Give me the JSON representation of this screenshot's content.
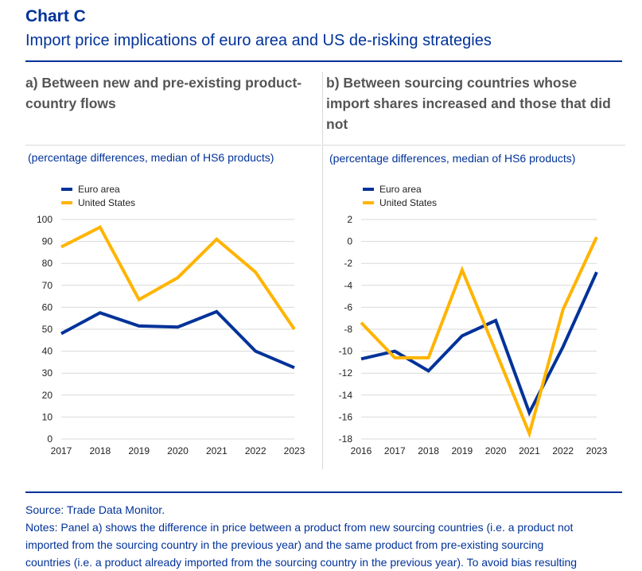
{
  "header": {
    "title": "Chart C",
    "subtitle": "Import price implications of euro area and US de-risking strategies"
  },
  "colors": {
    "euro_area": "#003299",
    "united_states": "#FFB400",
    "grid": "#d9d9d9"
  },
  "panels": [
    {
      "title": "a) Between new and pre-existing product-country flows",
      "units": "(percentage differences, median of HS6 products)"
    },
    {
      "title": "b) Between sourcing countries whose import shares increased and those that did not",
      "units": "(percentage differences, median of HS6 products)"
    }
  ],
  "chart_data": [
    {
      "type": "line",
      "x": [
        "2017",
        "2018",
        "2019",
        "2020",
        "2021",
        "2022",
        "2023"
      ],
      "ylim": [
        0,
        100
      ],
      "yticks": [
        0,
        10,
        20,
        30,
        40,
        50,
        60,
        70,
        80,
        90,
        100
      ],
      "grid": "horizontal",
      "legend": "top-left",
      "series": [
        {
          "name": "Euro area",
          "color": "#003299",
          "values": [
            48,
            57.5,
            51.5,
            51,
            58,
            40,
            32.5
          ]
        },
        {
          "name": "United States",
          "color": "#FFB400",
          "values": [
            87.5,
            96.5,
            63.5,
            73.5,
            91,
            76,
            50
          ]
        }
      ]
    },
    {
      "type": "line",
      "x": [
        "2016",
        "2017",
        "2018",
        "2019",
        "2020",
        "2021",
        "2022",
        "2023"
      ],
      "ylim": [
        -18,
        2
      ],
      "yticks": [
        -18,
        -16,
        -14,
        -12,
        -10,
        -8,
        -6,
        -4,
        -2,
        0,
        2
      ],
      "grid": "horizontal",
      "legend": "top-left",
      "series": [
        {
          "name": "Euro area",
          "color": "#003299",
          "values": [
            -10.7,
            -10,
            -11.8,
            -8.6,
            -7.2,
            -15.6,
            -9.6,
            -2.8
          ]
        },
        {
          "name": "United States",
          "color": "#FFB400",
          "values": [
            -7.4,
            -10.6,
            -10.6,
            -2.6,
            -10,
            -17.5,
            -6.2,
            0.4
          ]
        }
      ]
    }
  ],
  "footer": {
    "source": "Source: Trade Data Monitor.",
    "notes_1": "Notes: Panel a) shows the difference in price between a product from new sourcing countries (i.e. a product not",
    "notes_2": "imported from the sourcing country in the previous year) and the same product from pre-existing sourcing",
    "notes_3": "countries (i.e. a product already imported from the sourcing country in the previous year). To avoid bias resulting"
  }
}
